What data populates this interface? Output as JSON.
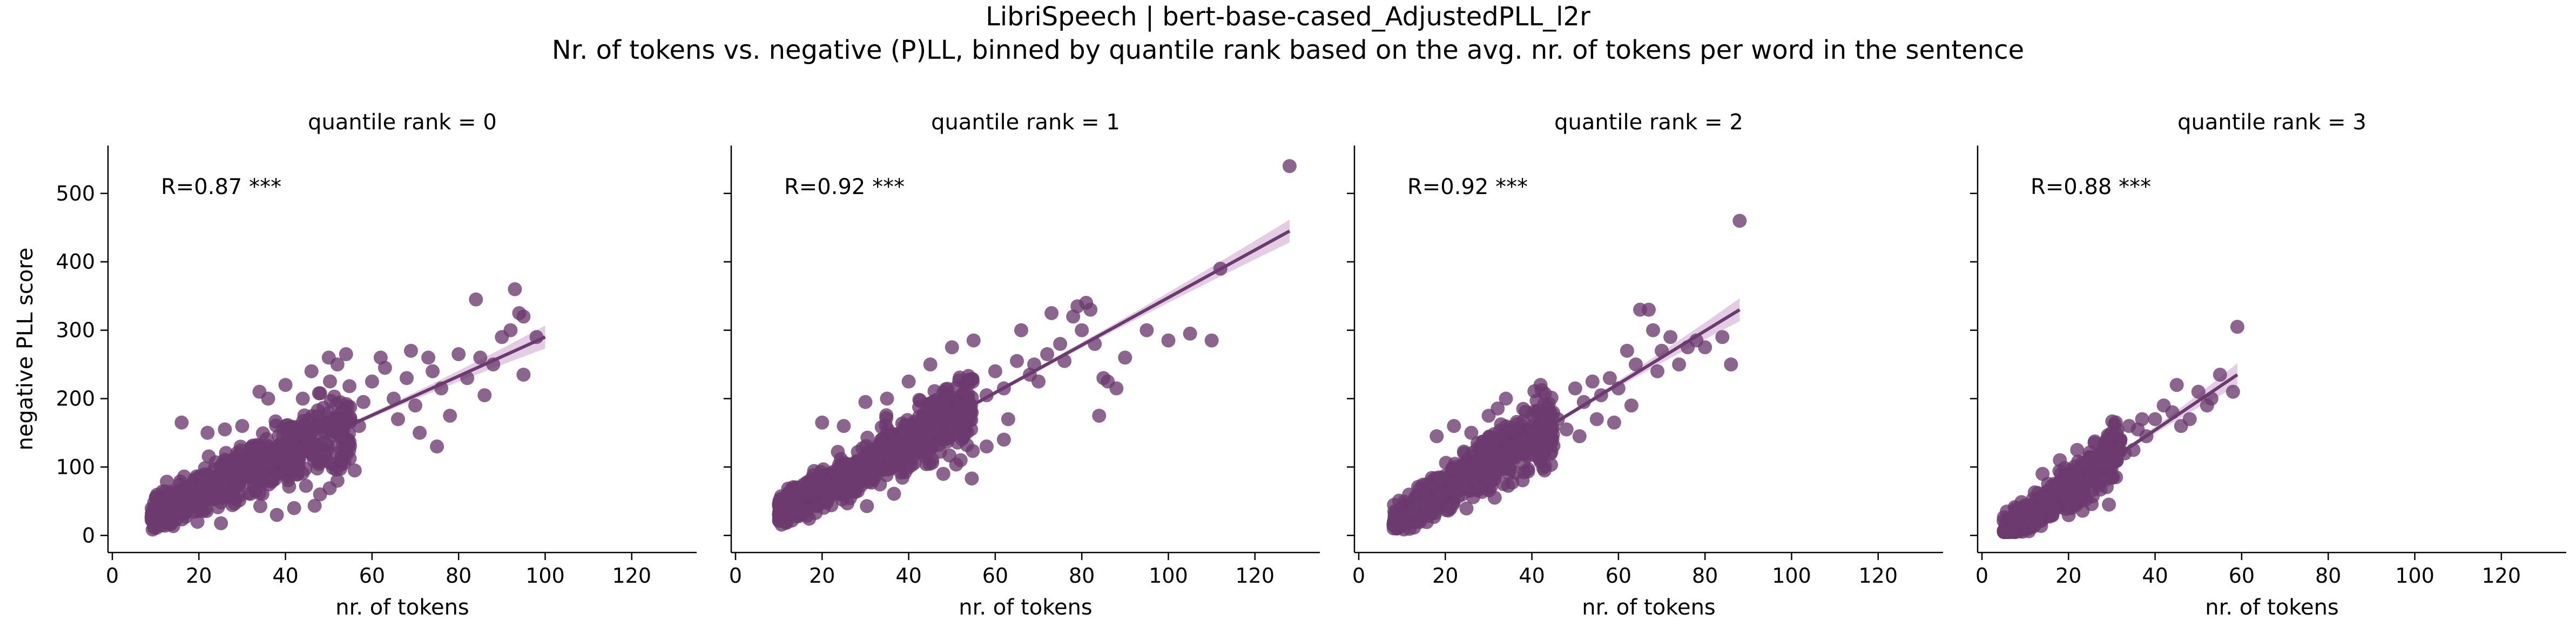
{
  "figure": {
    "title_line1": "LibriSpeech | bert-base-cased_AdjustedPLL_l2r",
    "title_line2": "Nr. of tokens vs. negative (P)LL, binned by quantile rank based on the avg. nr. of tokens per word in the sentence"
  },
  "colors": {
    "points": "#6b3a6e",
    "line": "#6b3a6e",
    "band": "#d9bcd9"
  },
  "chart_data": [
    {
      "type": "scatter",
      "panel_title": "quantile rank = 0",
      "xlabel": "nr. of tokens",
      "ylabel": "negative PLL score",
      "annotation": "R=0.87 ***",
      "xlim": [
        -1,
        135
      ],
      "ylim": [
        -25,
        570
      ],
      "xticks": [
        0,
        20,
        40,
        60,
        80,
        100,
        120
      ],
      "yticks": [
        0,
        100,
        200,
        300,
        400,
        500
      ],
      "regression": {
        "x": [
          9,
          100
        ],
        "y": [
          30,
          290
        ]
      },
      "cloud": {
        "x_range": [
          9,
          55
        ],
        "count": 650
      },
      "points": [
        [
          58,
          195
        ],
        [
          60,
          225
        ],
        [
          62,
          260
        ],
        [
          63,
          245
        ],
        [
          65,
          200
        ],
        [
          66,
          170
        ],
        [
          68,
          230
        ],
        [
          69,
          270
        ],
        [
          70,
          190
        ],
        [
          71,
          150
        ],
        [
          73,
          260
        ],
        [
          74,
          240
        ],
        [
          75,
          130
        ],
        [
          76,
          215
        ],
        [
          78,
          175
        ],
        [
          80,
          265
        ],
        [
          82,
          230
        ],
        [
          84,
          345
        ],
        [
          85,
          260
        ],
        [
          86,
          205
        ],
        [
          88,
          250
        ],
        [
          90,
          290
        ],
        [
          92,
          300
        ],
        [
          93,
          360
        ],
        [
          94,
          325
        ],
        [
          95,
          320
        ],
        [
          95,
          235
        ],
        [
          98,
          290
        ],
        [
          16,
          165
        ],
        [
          22,
          150
        ],
        [
          26,
          155
        ],
        [
          30,
          160
        ],
        [
          34,
          210
        ],
        [
          36,
          200
        ],
        [
          40,
          220
        ],
        [
          44,
          200
        ],
        [
          46,
          240
        ],
        [
          50,
          260
        ],
        [
          52,
          250
        ],
        [
          54,
          265
        ],
        [
          38,
          30
        ],
        [
          42,
          40
        ],
        [
          48,
          60
        ],
        [
          52,
          80
        ],
        [
          56,
          95
        ],
        [
          55,
          170
        ],
        [
          57,
          160
        ]
      ]
    },
    {
      "type": "scatter",
      "panel_title": "quantile rank = 1",
      "xlabel": "nr. of tokens",
      "ylabel": "",
      "annotation": "R=0.92 ***",
      "xlim": [
        -1,
        135
      ],
      "ylim": [
        -25,
        570
      ],
      "xticks": [
        0,
        20,
        40,
        60,
        80,
        100,
        120
      ],
      "yticks": [
        0,
        100,
        200,
        300,
        400,
        500
      ],
      "regression": {
        "x": [
          10,
          128
        ],
        "y": [
          35,
          445
        ]
      },
      "cloud": {
        "x_range": [
          10,
          55
        ],
        "count": 700
      },
      "points": [
        [
          58,
          205
        ],
        [
          60,
          240
        ],
        [
          62,
          215
        ],
        [
          63,
          170
        ],
        [
          65,
          255
        ],
        [
          66,
          300
        ],
        [
          68,
          235
        ],
        [
          69,
          250
        ],
        [
          70,
          225
        ],
        [
          72,
          265
        ],
        [
          73,
          325
        ],
        [
          75,
          280
        ],
        [
          76,
          255
        ],
        [
          78,
          320
        ],
        [
          79,
          335
        ],
        [
          80,
          300
        ],
        [
          81,
          340
        ],
        [
          82,
          330
        ],
        [
          83,
          280
        ],
        [
          84,
          175
        ],
        [
          85,
          230
        ],
        [
          86,
          225
        ],
        [
          88,
          215
        ],
        [
          90,
          260
        ],
        [
          95,
          300
        ],
        [
          100,
          285
        ],
        [
          105,
          295
        ],
        [
          110,
          285
        ],
        [
          112,
          390
        ],
        [
          128,
          540
        ],
        [
          20,
          165
        ],
        [
          25,
          160
        ],
        [
          30,
          195
        ],
        [
          35,
          200
        ],
        [
          40,
          225
        ],
        [
          45,
          250
        ],
        [
          50,
          275
        ],
        [
          55,
          285
        ],
        [
          48,
          90
        ],
        [
          52,
          110
        ],
        [
          58,
          130
        ],
        [
          62,
          140
        ]
      ]
    },
    {
      "type": "scatter",
      "panel_title": "quantile rank = 2",
      "xlabel": "nr. of tokens",
      "ylabel": "",
      "annotation": "R=0.92 ***",
      "xlim": [
        -1,
        135
      ],
      "ylim": [
        -25,
        570
      ],
      "xticks": [
        0,
        20,
        40,
        60,
        80,
        100,
        120
      ],
      "yticks": [
        0,
        100,
        200,
        300,
        400,
        500
      ],
      "regression": {
        "x": [
          8,
          88
        ],
        "y": [
          20,
          330
        ]
      },
      "cloud": {
        "x_range": [
          8,
          45
        ],
        "count": 650
      },
      "points": [
        [
          46,
          170
        ],
        [
          48,
          155
        ],
        [
          50,
          215
        ],
        [
          51,
          145
        ],
        [
          52,
          195
        ],
        [
          54,
          225
        ],
        [
          55,
          170
        ],
        [
          56,
          205
        ],
        [
          58,
          230
        ],
        [
          59,
          165
        ],
        [
          60,
          215
        ],
        [
          62,
          270
        ],
        [
          63,
          190
        ],
        [
          64,
          250
        ],
        [
          65,
          330
        ],
        [
          67,
          330
        ],
        [
          68,
          300
        ],
        [
          69,
          240
        ],
        [
          70,
          270
        ],
        [
          72,
          290
        ],
        [
          74,
          250
        ],
        [
          76,
          275
        ],
        [
          78,
          285
        ],
        [
          80,
          275
        ],
        [
          84,
          290
        ],
        [
          86,
          250
        ],
        [
          88,
          460
        ],
        [
          18,
          145
        ],
        [
          22,
          160
        ],
        [
          26,
          150
        ],
        [
          30,
          175
        ],
        [
          34,
          200
        ],
        [
          38,
          185
        ],
        [
          42,
          220
        ]
      ]
    },
    {
      "type": "scatter",
      "panel_title": "quantile rank = 3",
      "xlabel": "nr. of tokens",
      "ylabel": "",
      "annotation": "R=0.88 ***",
      "xlim": [
        -1,
        135
      ],
      "ylim": [
        -25,
        570
      ],
      "xticks": [
        0,
        20,
        40,
        60,
        80,
        100,
        120
      ],
      "yticks": [
        0,
        100,
        200,
        300,
        400,
        500
      ],
      "regression": {
        "x": [
          5,
          59
        ],
        "y": [
          5,
          235
        ]
      },
      "cloud": {
        "x_range": [
          5,
          32
        ],
        "count": 500
      },
      "points": [
        [
          32,
          140
        ],
        [
          33,
          120
        ],
        [
          34,
          160
        ],
        [
          35,
          125
        ],
        [
          36,
          155
        ],
        [
          37,
          170
        ],
        [
          38,
          145
        ],
        [
          40,
          170
        ],
        [
          42,
          190
        ],
        [
          44,
          180
        ],
        [
          45,
          220
        ],
        [
          46,
          160
        ],
        [
          48,
          170
        ],
        [
          50,
          210
        ],
        [
          52,
          190
        ],
        [
          53,
          200
        ],
        [
          55,
          235
        ],
        [
          58,
          210
        ],
        [
          59,
          305
        ],
        [
          14,
          90
        ],
        [
          18,
          110
        ],
        [
          22,
          125
        ],
        [
          26,
          135
        ],
        [
          30,
          150
        ]
      ]
    }
  ]
}
